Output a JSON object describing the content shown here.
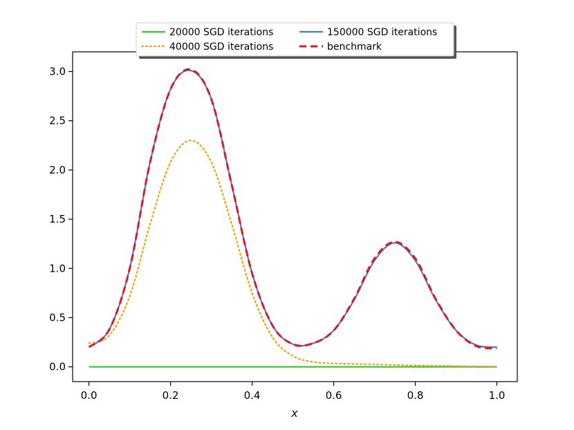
{
  "chart_data": {
    "type": "line",
    "title": "",
    "xlabel": "x",
    "ylabel": "",
    "xlim": [
      -0.04,
      1.05
    ],
    "ylim": [
      -0.15,
      3.2
    ],
    "xticks": [
      0.0,
      0.2,
      0.4,
      0.6,
      0.8,
      1.0
    ],
    "xtick_labels": [
      "0.0",
      "0.2",
      "0.4",
      "0.6",
      "0.8",
      "1.0"
    ],
    "yticks": [
      0.0,
      0.5,
      1.0,
      1.5,
      2.0,
      2.5,
      3.0
    ],
    "ytick_labels": [
      "0.0",
      "0.5",
      "1.0",
      "1.5",
      "2.0",
      "2.5",
      "3.0"
    ],
    "grid": false,
    "legend_position": "top-center",
    "x": [
      0.0,
      0.05,
      0.1,
      0.15,
      0.2,
      0.25,
      0.3,
      0.35,
      0.4,
      0.45,
      0.5,
      0.55,
      0.6,
      0.65,
      0.7,
      0.75,
      0.8,
      0.85,
      0.9,
      0.95,
      1.0
    ],
    "series": [
      {
        "name": "20000 SGD iterations",
        "color": "#33cc33",
        "style": "solid",
        "values": [
          0.0,
          0.0,
          0.0,
          0.0,
          0.0,
          0.0,
          0.0,
          0.0,
          0.0,
          0.0,
          0.0,
          0.0,
          0.0,
          0.0,
          0.0,
          0.0,
          0.0,
          0.0,
          0.0,
          0.0,
          0.0
        ]
      },
      {
        "name": "40000 SGD iterations",
        "color": "#f5a000",
        "style": "dotted",
        "values": [
          0.24,
          0.32,
          0.72,
          1.45,
          2.08,
          2.3,
          2.08,
          1.45,
          0.75,
          0.3,
          0.11,
          0.05,
          0.035,
          0.03,
          0.025,
          0.02,
          0.015,
          0.012,
          0.008,
          0.005,
          0.003
        ]
      },
      {
        "name": "150000 SGD iterations",
        "color": "#4a78d6",
        "style": "solid",
        "values": [
          0.2,
          0.38,
          1.0,
          2.08,
          2.82,
          3.01,
          2.72,
          1.85,
          0.95,
          0.42,
          0.23,
          0.24,
          0.37,
          0.68,
          1.08,
          1.26,
          1.08,
          0.68,
          0.37,
          0.22,
          0.2
        ]
      },
      {
        "name": "benchmark",
        "color": "#e8141b",
        "style": "dashed",
        "values": [
          0.2,
          0.38,
          1.0,
          2.08,
          2.82,
          3.02,
          2.72,
          1.85,
          0.95,
          0.42,
          0.23,
          0.24,
          0.37,
          0.69,
          1.1,
          1.27,
          1.1,
          0.69,
          0.37,
          0.21,
          0.19
        ]
      }
    ]
  }
}
